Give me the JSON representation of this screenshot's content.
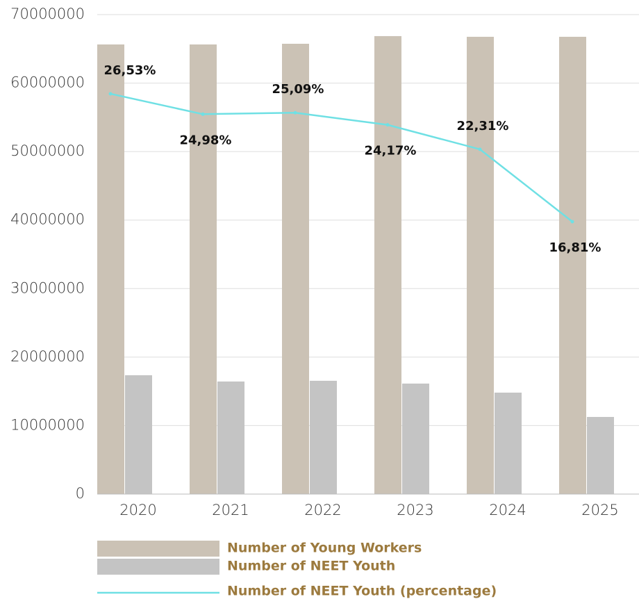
{
  "chart_data": {
    "type": "bar",
    "categories": [
      "2020",
      "2021",
      "2022",
      "2023",
      "2024",
      "2025"
    ],
    "series": [
      {
        "name": "Number of Young Workers",
        "color": "#cbc2b5",
        "values": [
          65640000,
          65640000,
          65740000,
          66860000,
          66760000,
          66760000
        ]
      },
      {
        "name": "Number of NEET Youth",
        "color": "#c4c4c4",
        "values": [
          17350000,
          16430000,
          16540000,
          16130000,
          14810000,
          11260000
        ]
      },
      {
        "name": "Number of NEET Youth (percentage)",
        "type": "line",
        "axis": "y2",
        "color": "#6fe0e4",
        "values": [
          26.53,
          24.98,
          25.09,
          24.17,
          22.31,
          16.81
        ],
        "value_labels": [
          "26,53%",
          "24,98%",
          "25,09%",
          "24,17%",
          "22,31%",
          "16,81%"
        ]
      }
    ],
    "ylim": [
      0,
      70000000
    ],
    "yticks": [
      0,
      10000000,
      20000000,
      30000000,
      40000000,
      50000000,
      60000000,
      70000000
    ],
    "y2lim": [
      -3.9,
      32.55
    ],
    "grid": true,
    "legend": "bottom"
  }
}
